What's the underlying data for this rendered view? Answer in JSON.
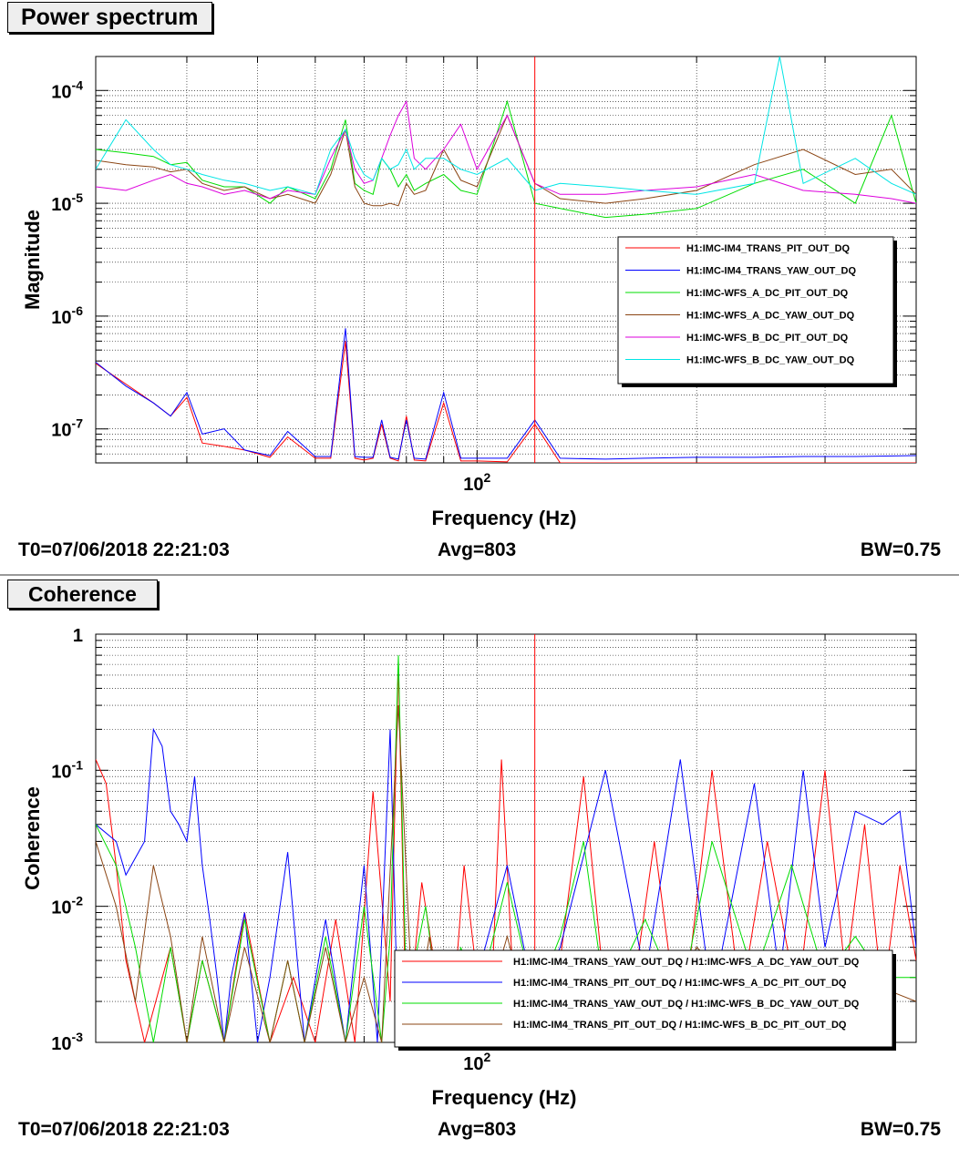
{
  "panels": {
    "top": {
      "title": "Power spectrum",
      "footer": {
        "t0": "T0=07/06/2018 22:21:03",
        "avg": "Avg=803",
        "bw": "BW=0.75"
      }
    },
    "bottom": {
      "title": "Coherence",
      "footer": {
        "t0": "T0=07/06/2018 22:21:03",
        "avg": "Avg=803",
        "bw": "BW=0.75"
      }
    }
  },
  "chart_data": [
    {
      "type": "line",
      "title": "Power spectrum",
      "xlabel": "Frequency (Hz)",
      "ylabel": "Magnitude",
      "xscale": "log",
      "yscale": "log",
      "xlim": [
        30,
        400
      ],
      "ylim": [
        5e-08,
        0.0002
      ],
      "grid": true,
      "legend_position": "right-middle",
      "x_ticks": [
        {
          "value": 100,
          "base": "10",
          "exp": "2"
        }
      ],
      "y_ticks": [
        {
          "value": 0.0001,
          "base": "10",
          "exp": "-4"
        },
        {
          "value": 1e-05,
          "base": "10",
          "exp": "-5"
        },
        {
          "value": 1e-06,
          "base": "10",
          "exp": "-6"
        },
        {
          "value": 1e-07,
          "base": "10",
          "exp": "-7"
        }
      ],
      "annotations": [
        {
          "type": "vline",
          "x": 120,
          "color": "#ff0000"
        }
      ],
      "series": [
        {
          "name": "H1:IMC-IM4_TRANS_PIT_OUT_DQ",
          "color": "#ff0000",
          "width": 1,
          "x": [
            30,
            33,
            36,
            38,
            40,
            42,
            45,
            48,
            52,
            55,
            60,
            63,
            66,
            68,
            70,
            72,
            74,
            76,
            78,
            80,
            82,
            85,
            90,
            95,
            100,
            110,
            120,
            130,
            150,
            170,
            200,
            240,
            280,
            330,
            400
          ],
          "y": [
            3.8e-07,
            2.5e-07,
            1.7e-07,
            1.3e-07,
            1.9e-07,
            7.5e-08,
            7e-08,
            6.5e-08,
            5.6e-08,
            8.5e-08,
            5.5e-08,
            5.5e-08,
            6e-07,
            5.5e-08,
            5.3e-08,
            5.5e-08,
            1.1e-07,
            5.5e-08,
            5.2e-08,
            1.3e-07,
            5.3e-08,
            5.2e-08,
            1.7e-07,
            5.2e-08,
            5.2e-08,
            5.1e-08,
            1.1e-07,
            5e-08,
            5e-08,
            5e-08,
            5e-08,
            5e-08,
            5e-08,
            5e-08,
            5e-08
          ]
        },
        {
          "name": "H1:IMC-IM4_TRANS_YAW_OUT_DQ",
          "color": "#0000ff",
          "width": 1,
          "x": [
            30,
            33,
            36,
            38,
            40,
            42,
            45,
            48,
            52,
            55,
            60,
            63,
            66,
            68,
            70,
            72,
            74,
            76,
            78,
            80,
            82,
            85,
            90,
            95,
            100,
            110,
            120,
            130,
            150,
            170,
            200,
            240,
            280,
            330,
            400
          ],
          "y": [
            3.9e-07,
            2.4e-07,
            1.7e-07,
            1.3e-07,
            2.1e-07,
            9e-08,
            1e-07,
            6.5e-08,
            5.8e-08,
            9.5e-08,
            5.7e-08,
            5.7e-08,
            7.8e-07,
            5.7e-08,
            5.6e-08,
            5.6e-08,
            1.2e-07,
            5.6e-08,
            5.4e-08,
            1.2e-07,
            5.5e-08,
            5.4e-08,
            2.1e-07,
            5.5e-08,
            5.5e-08,
            5.5e-08,
            1.2e-07,
            5.5e-08,
            5.4e-08,
            5.5e-08,
            5.6e-08,
            5.6e-08,
            5.7e-08,
            5.7e-08,
            5.8e-08
          ]
        },
        {
          "name": "H1:IMC-WFS_A_DC_PIT_OUT_DQ",
          "color": "#00dd00",
          "width": 1,
          "x": [
            30,
            33,
            36,
            38,
            40,
            42,
            45,
            48,
            52,
            55,
            60,
            63,
            66,
            68,
            70,
            72,
            74,
            76,
            78,
            80,
            82,
            85,
            90,
            95,
            100,
            110,
            120,
            130,
            150,
            170,
            200,
            240,
            280,
            330,
            370,
            400
          ],
          "y": [
            3e-05,
            2.8e-05,
            2.6e-05,
            2.2e-05,
            2.3e-05,
            1.6e-05,
            1.4e-05,
            1.4e-05,
            1e-05,
            1.4e-05,
            1.1e-05,
            2e-05,
            5.5e-05,
            1.5e-05,
            1.3e-05,
            1.2e-05,
            2.5e-05,
            2e-05,
            1.4e-05,
            1.8e-05,
            1.3e-05,
            1.5e-05,
            1.8e-05,
            1.3e-05,
            1.2e-05,
            8e-05,
            1e-05,
            9e-06,
            7.5e-06,
            8e-06,
            9e-06,
            1.5e-05,
            2e-05,
            1e-05,
            6e-05,
            1e-05
          ]
        },
        {
          "name": "H1:IMC-WFS_A_DC_YAW_OUT_DQ",
          "color": "#8b4513",
          "width": 1,
          "x": [
            30,
            33,
            36,
            38,
            40,
            42,
            45,
            48,
            52,
            55,
            60,
            63,
            66,
            68,
            70,
            72,
            74,
            76,
            78,
            80,
            82,
            85,
            90,
            95,
            100,
            110,
            120,
            130,
            150,
            170,
            200,
            240,
            280,
            330,
            370,
            400
          ],
          "y": [
            2.4e-05,
            2.2e-05,
            2.1e-05,
            1.9e-05,
            2e-05,
            1.5e-05,
            1.3e-05,
            1.4e-05,
            1.1e-05,
            1.2e-05,
            1e-05,
            1.8e-05,
            4.5e-05,
            1.4e-05,
            1e-05,
            9.5e-06,
            9.5e-06,
            1e-05,
            9.5e-06,
            1.5e-05,
            1.2e-05,
            1.3e-05,
            3e-05,
            1.6e-05,
            1.4e-05,
            6e-05,
            1.5e-05,
            1.1e-05,
            1e-05,
            1.1e-05,
            1.3e-05,
            2.2e-05,
            3e-05,
            1.8e-05,
            2e-05,
            1.2e-05
          ]
        },
        {
          "name": "H1:IMC-WFS_B_DC_PIT_OUT_DQ",
          "color": "#dd00dd",
          "width": 1,
          "x": [
            30,
            33,
            36,
            38,
            40,
            42,
            45,
            48,
            52,
            55,
            60,
            63,
            66,
            68,
            70,
            72,
            74,
            76,
            78,
            80,
            82,
            85,
            90,
            95,
            100,
            110,
            120,
            130,
            150,
            170,
            200,
            240,
            280,
            330,
            370,
            400
          ],
          "y": [
            1.4e-05,
            1.3e-05,
            1.6e-05,
            1.8e-05,
            1.5e-05,
            1.4e-05,
            1.2e-05,
            1.3e-05,
            1.1e-05,
            1.3e-05,
            1.2e-05,
            2.5e-05,
            4.5e-05,
            2e-05,
            1.5e-05,
            1.6e-05,
            2.5e-05,
            4e-05,
            6e-05,
            8e-05,
            2.5e-05,
            2e-05,
            3e-05,
            5e-05,
            2e-05,
            6e-05,
            1.5e-05,
            1.2e-05,
            1.2e-05,
            1.3e-05,
            1.4e-05,
            1.8e-05,
            1.3e-05,
            1.2e-05,
            1.1e-05,
            1e-05
          ]
        },
        {
          "name": "H1:IMC-WFS_B_DC_YAW_OUT_DQ",
          "color": "#00e5e5",
          "width": 1,
          "x": [
            30,
            33,
            36,
            38,
            40,
            42,
            45,
            48,
            52,
            55,
            60,
            63,
            66,
            68,
            70,
            72,
            74,
            76,
            78,
            80,
            82,
            85,
            90,
            95,
            100,
            110,
            120,
            130,
            150,
            170,
            200,
            240,
            260,
            280,
            330,
            370,
            400
          ],
          "y": [
            2e-05,
            5.5e-05,
            3e-05,
            2.2e-05,
            2e-05,
            1.8e-05,
            1.6e-05,
            1.5e-05,
            1.3e-05,
            1.4e-05,
            1.2e-05,
            3e-05,
            4.5e-05,
            2.5e-05,
            1.8e-05,
            1.6e-05,
            2.5e-05,
            2e-05,
            2.2e-05,
            3e-05,
            2e-05,
            2.5e-05,
            2.5e-05,
            2e-05,
            1.8e-05,
            2.5e-05,
            1.3e-05,
            1.5e-05,
            1.4e-05,
            1.3e-05,
            1.2e-05,
            1.5e-05,
            0.0002,
            1.5e-05,
            2.5e-05,
            1.5e-05,
            1.2e-05
          ]
        }
      ]
    },
    {
      "type": "line",
      "title": "Coherence",
      "xlabel": "Frequency (Hz)",
      "ylabel": "Coherence",
      "xscale": "log",
      "yscale": "log",
      "xlim": [
        30,
        400
      ],
      "ylim": [
        0.001,
        1
      ],
      "grid": true,
      "legend_position": "bottom-right",
      "x_ticks": [
        {
          "value": 100,
          "base": "10",
          "exp": "2"
        }
      ],
      "y_ticks": [
        {
          "value": 1,
          "label": "1"
        },
        {
          "value": 0.1,
          "base": "10",
          "exp": "-1"
        },
        {
          "value": 0.01,
          "base": "10",
          "exp": "-2"
        },
        {
          "value": 0.001,
          "base": "10",
          "exp": "-3"
        }
      ],
      "annotations": [
        {
          "type": "vline",
          "x": 120,
          "color": "#ff0000"
        }
      ],
      "series": [
        {
          "name": "H1:IMC-IM4_TRANS_YAW_OUT_DQ / H1:IMC-WFS_A_DC_YAW_OUT_DQ",
          "color": "#ff0000",
          "width": 1,
          "x": [
            30,
            31,
            32,
            33,
            35,
            38,
            40,
            42,
            45,
            48,
            52,
            56,
            60,
            64,
            68,
            72,
            76,
            78,
            80,
            84,
            88,
            92,
            96,
            100,
            104,
            108,
            112,
            116,
            120,
            130,
            140,
            150,
            160,
            175,
            190,
            210,
            230,
            250,
            275,
            300,
            320,
            340,
            360,
            380,
            400
          ],
          "y": [
            0.12,
            0.08,
            0.02,
            0.004,
            0.001,
            0.005,
            0.001,
            0.004,
            0.001,
            0.009,
            0.001,
            0.003,
            0.001,
            0.008,
            0.001,
            0.07,
            0.002,
            0.6,
            0.001,
            0.015,
            0.003,
            0.001,
            0.02,
            0.003,
            0.001,
            0.12,
            0.003,
            0.001,
            0.001,
            0.004,
            0.09,
            0.002,
            0.001,
            0.03,
            0.001,
            0.1,
            0.002,
            0.03,
            0.002,
            0.1,
            0.003,
            0.04,
            0.002,
            0.02,
            0.004
          ]
        },
        {
          "name": "H1:IMC-IM4_TRANS_PIT_OUT_DQ / H1:IMC-WFS_A_DC_PIT_OUT_DQ",
          "color": "#0000ff",
          "width": 1,
          "x": [
            30,
            32,
            33,
            35,
            36,
            37,
            38,
            39,
            40,
            41,
            42,
            43,
            44,
            45,
            46,
            48,
            50,
            52,
            55,
            58,
            62,
            66,
            70,
            73,
            76,
            78,
            80,
            85,
            90,
            95,
            100,
            110,
            120,
            130,
            150,
            170,
            190,
            210,
            240,
            260,
            280,
            300,
            330,
            360,
            380,
            400
          ],
          "y": [
            0.04,
            0.03,
            0.017,
            0.03,
            0.2,
            0.15,
            0.05,
            0.04,
            0.03,
            0.09,
            0.02,
            0.008,
            0.003,
            0.001,
            0.003,
            0.009,
            0.001,
            0.003,
            0.025,
            0.001,
            0.008,
            0.001,
            0.02,
            0.001,
            0.2,
            0.001,
            0.003,
            0.001,
            0.004,
            0.001,
            0.003,
            0.02,
            0.002,
            0.005,
            0.1,
            0.003,
            0.12,
            0.002,
            0.08,
            0.003,
            0.1,
            0.005,
            0.05,
            0.04,
            0.05,
            0.005
          ]
        },
        {
          "name": "H1:IMC-IM4_TRANS_YAW_OUT_DQ / H1:IMC-WFS_B_DC_YAW_OUT_DQ",
          "color": "#00dd00",
          "width": 1,
          "x": [
            30,
            32,
            34,
            36,
            38,
            40,
            42,
            45,
            48,
            52,
            55,
            58,
            62,
            66,
            70,
            74,
            76,
            78,
            80,
            85,
            90,
            95,
            100,
            110,
            120,
            130,
            140,
            150,
            170,
            190,
            210,
            240,
            270,
            300,
            330,
            360,
            400
          ],
          "y": [
            0.04,
            0.02,
            0.005,
            0.001,
            0.005,
            0.001,
            0.004,
            0.001,
            0.008,
            0.001,
            0.004,
            0.001,
            0.006,
            0.001,
            0.01,
            0.001,
            0.006,
            0.7,
            0.002,
            0.01,
            0.001,
            0.005,
            0.002,
            0.015,
            0.002,
            0.006,
            0.03,
            0.002,
            0.008,
            0.002,
            0.03,
            0.003,
            0.02,
            0.003,
            0.006,
            0.003,
            0.003
          ]
        },
        {
          "name": "H1:IMC-IM4_TRANS_PIT_OUT_DQ / H1:IMC-WFS_B_DC_PIT_OUT_DQ",
          "color": "#8b4513",
          "width": 1,
          "x": [
            30,
            32,
            34,
            36,
            38,
            40,
            42,
            45,
            48,
            52,
            55,
            58,
            62,
            66,
            70,
            74,
            78,
            82,
            86,
            90,
            95,
            100,
            110,
            120,
            130,
            150,
            170,
            200,
            240,
            280,
            330,
            400
          ],
          "y": [
            0.03,
            0.01,
            0.002,
            0.02,
            0.006,
            0.001,
            0.006,
            0.001,
            0.005,
            0.001,
            0.004,
            0.001,
            0.005,
            0.001,
            0.003,
            0.001,
            0.3,
            0.001,
            0.006,
            0.001,
            0.004,
            0.001,
            0.006,
            0.001,
            0.004,
            0.003,
            0.001,
            0.005,
            0.002,
            0.004,
            0.003,
            0.002
          ]
        }
      ]
    }
  ]
}
